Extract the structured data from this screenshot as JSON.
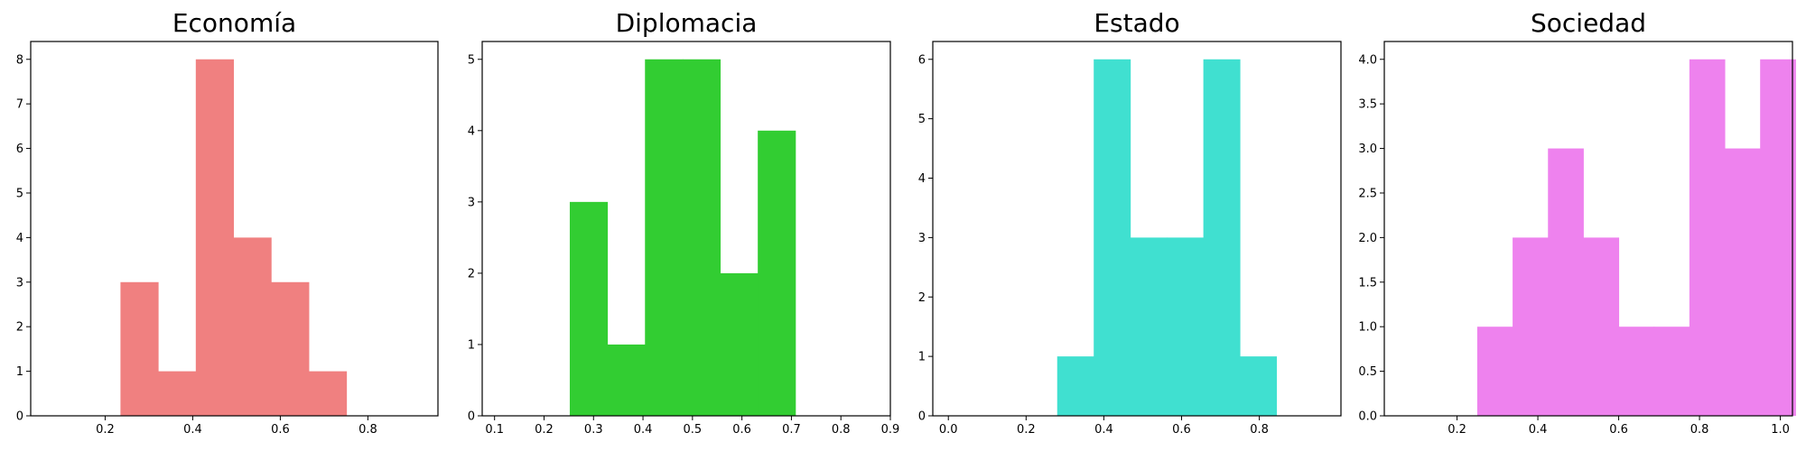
{
  "chart_data": [
    {
      "type": "bar",
      "title": "Economía",
      "color": "#f08080",
      "xlim": [
        0.03,
        0.96
      ],
      "ylim": [
        0,
        8.4
      ],
      "xticks": [
        0.2,
        0.4,
        0.6,
        0.8
      ],
      "xtick_labels": [
        "0.2",
        "0.4",
        "0.6",
        "0.8"
      ],
      "yticks": [
        0,
        1,
        2,
        3,
        4,
        5,
        6,
        7,
        8
      ],
      "ytick_labels": [
        "0",
        "1",
        "2",
        "3",
        "4",
        "5",
        "6",
        "7",
        "8"
      ],
      "bins": [
        {
          "x0": 0.235,
          "x1": 0.321,
          "count": 3
        },
        {
          "x0": 0.321,
          "x1": 0.407,
          "count": 1
        },
        {
          "x0": 0.407,
          "x1": 0.493,
          "count": 8
        },
        {
          "x0": 0.493,
          "x1": 0.579,
          "count": 4
        },
        {
          "x0": 0.579,
          "x1": 0.665,
          "count": 3
        },
        {
          "x0": 0.665,
          "x1": 0.751,
          "count": 1
        }
      ]
    },
    {
      "type": "bar",
      "title": "Diplomacia",
      "color": "#32cd32",
      "xlim": [
        0.075,
        0.9
      ],
      "ylim": [
        0,
        5.25
      ],
      "xticks": [
        0.1,
        0.2,
        0.3,
        0.4,
        0.5,
        0.6,
        0.7,
        0.8,
        0.9
      ],
      "xtick_labels": [
        "0.1",
        "0.2",
        "0.3",
        "0.4",
        "0.5",
        "0.6",
        "0.7",
        "0.8",
        "0.9"
      ],
      "yticks": [
        0,
        1,
        2,
        3,
        4,
        5
      ],
      "ytick_labels": [
        "0",
        "1",
        "2",
        "3",
        "4",
        "5"
      ],
      "bins": [
        {
          "x0": 0.252,
          "x1": 0.328,
          "count": 3
        },
        {
          "x0": 0.328,
          "x1": 0.404,
          "count": 1
        },
        {
          "x0": 0.404,
          "x1": 0.48,
          "count": 5
        },
        {
          "x0": 0.48,
          "x1": 0.556,
          "count": 5
        },
        {
          "x0": 0.556,
          "x1": 0.632,
          "count": 2
        },
        {
          "x0": 0.632,
          "x1": 0.708,
          "count": 4
        }
      ]
    },
    {
      "type": "bar",
      "title": "Estado",
      "color": "#40e0d0",
      "xlim": [
        -0.04,
        1.01
      ],
      "ylim": [
        0,
        6.3
      ],
      "xticks": [
        0.0,
        0.2,
        0.4,
        0.6,
        0.8
      ],
      "xtick_labels": [
        "0.0",
        "0.2",
        "0.4",
        "0.6",
        "0.8"
      ],
      "yticks": [
        0,
        1,
        2,
        3,
        4,
        5,
        6
      ],
      "ytick_labels": [
        "0",
        "1",
        "2",
        "3",
        "4",
        "5",
        "6"
      ],
      "bins": [
        {
          "x0": 0.28,
          "x1": 0.374,
          "count": 1
        },
        {
          "x0": 0.374,
          "x1": 0.468,
          "count": 6
        },
        {
          "x0": 0.468,
          "x1": 0.562,
          "count": 3
        },
        {
          "x0": 0.562,
          "x1": 0.656,
          "count": 3
        },
        {
          "x0": 0.656,
          "x1": 0.75,
          "count": 6
        },
        {
          "x0": 0.75,
          "x1": 0.844,
          "count": 1
        }
      ]
    },
    {
      "type": "bar",
      "title": "Sociedad",
      "color": "#ee82ee",
      "xlim": [
        0.02,
        1.03
      ],
      "ylim": [
        0,
        4.2
      ],
      "xticks": [
        0.2,
        0.4,
        0.6,
        0.8,
        1.0
      ],
      "xtick_labels": [
        "0.2",
        "0.4",
        "0.6",
        "0.8",
        "1.0"
      ],
      "yticks": [
        0,
        0.5,
        1,
        1.5,
        2,
        2.5,
        3,
        3.5,
        4
      ],
      "ytick_labels": [
        "0.0",
        "0.5",
        "1.0",
        "1.5",
        "2.0",
        "2.5",
        "3.0",
        "3.5",
        "4.0"
      ],
      "bins": [
        {
          "x0": 0.25,
          "x1": 0.3375,
          "count": 1
        },
        {
          "x0": 0.3375,
          "x1": 0.425,
          "count": 2
        },
        {
          "x0": 0.425,
          "x1": 0.5125,
          "count": 3
        },
        {
          "x0": 0.5125,
          "x1": 0.6,
          "count": 2
        },
        {
          "x0": 0.6,
          "x1": 0.6875,
          "count": 1
        },
        {
          "x0": 0.6875,
          "x1": 0.775,
          "count": 1
        },
        {
          "x0": 0.775,
          "x1": 0.8625,
          "count": 4
        },
        {
          "x0": 0.8625,
          "x1": 0.95,
          "count": 3
        },
        {
          "x0": 0.95,
          "x1": 1.0375,
          "count": 4
        }
      ]
    }
  ]
}
